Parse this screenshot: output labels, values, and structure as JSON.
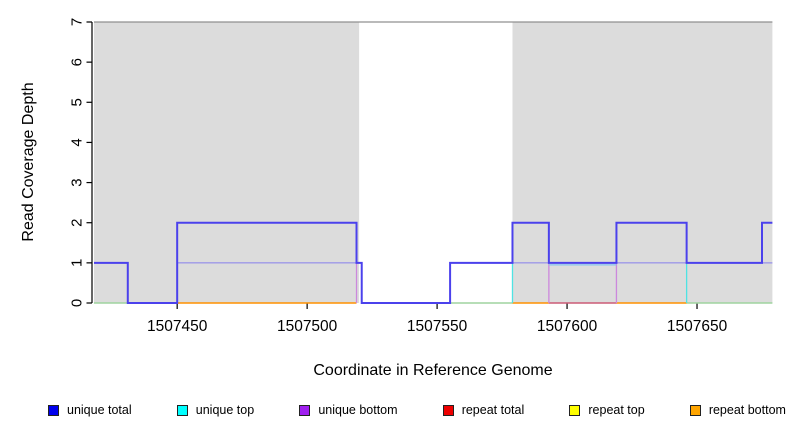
{
  "chart_data": {
    "type": "line",
    "subtype": "step-coverage",
    "title": "",
    "xlabel": "Coordinate in Reference Genome",
    "ylabel": "Read Coverage Depth",
    "xlim": [
      1507418,
      1507679
    ],
    "ylim": [
      0,
      7
    ],
    "xticks": [
      "1507450",
      "1507500",
      "1507550",
      "1507600",
      "1507650"
    ],
    "xtick_values": [
      1507450,
      1507500,
      1507550,
      1507600,
      1507650
    ],
    "yticks": [
      "0",
      "1",
      "2",
      "3",
      "4",
      "5",
      "6",
      "7"
    ],
    "ytick_values": [
      0,
      1,
      2,
      3,
      4,
      5,
      6,
      7
    ],
    "grid": false,
    "legend_position": "bottom",
    "background_color": "#ffffff",
    "shaded_regions": [
      {
        "start": 1507418,
        "end": 1507520,
        "color": "#DCDCDC"
      },
      {
        "start": 1507579,
        "end": 1507679,
        "color": "#DCDCDC"
      }
    ],
    "top_border": {
      "depth": 7,
      "color": "#909090"
    },
    "series": [
      {
        "name": "unique total",
        "color": "#0000EE",
        "apparent_line_color": "#4B41EC",
        "segments": [
          {
            "start": 1507418,
            "end": 1507431,
            "depth": 1
          },
          {
            "start": 1507431,
            "end": 1507450,
            "depth": 0
          },
          {
            "start": 1507450,
            "end": 1507519,
            "depth": 2
          },
          {
            "start": 1507519,
            "end": 1507521,
            "depth": 1
          },
          {
            "start": 1507521,
            "end": 1507555,
            "depth": 0
          },
          {
            "start": 1507555,
            "end": 1507579,
            "depth": 1
          },
          {
            "start": 1507579,
            "end": 1507593,
            "depth": 2
          },
          {
            "start": 1507593,
            "end": 1507619,
            "depth": 1
          },
          {
            "start": 1507619,
            "end": 1507646,
            "depth": 2
          },
          {
            "start": 1507646,
            "end": 1507675,
            "depth": 1
          },
          {
            "start": 1507675,
            "end": 1507679,
            "depth": 2
          }
        ]
      },
      {
        "name": "unique top",
        "color": "#00FFFF",
        "segments": [
          {
            "start": 1507418,
            "end": 1507450,
            "depth": 0
          },
          {
            "start": 1507450,
            "end": 1507519,
            "depth": 1
          },
          {
            "start": 1507519,
            "end": 1507579,
            "depth": 0
          },
          {
            "start": 1507579,
            "end": 1507646,
            "depth": 1
          },
          {
            "start": 1507646,
            "end": 1507679,
            "depth": 0
          }
        ]
      },
      {
        "name": "unique bottom",
        "color": "#A020F0",
        "segments": [
          {
            "start": 1507418,
            "end": 1507431,
            "depth": 1
          },
          {
            "start": 1507431,
            "end": 1507450,
            "depth": 0
          },
          {
            "start": 1507450,
            "end": 1507519,
            "depth": 1
          },
          {
            "start": 1507519,
            "end": 1507555,
            "depth": 0
          },
          {
            "start": 1507555,
            "end": 1507593,
            "depth": 1
          },
          {
            "start": 1507593,
            "end": 1507619,
            "depth": 0
          },
          {
            "start": 1507619,
            "end": 1507679,
            "depth": 1
          }
        ]
      },
      {
        "name": "repeat total",
        "color": "#EE0000",
        "segments": [
          {
            "start": 1507418,
            "end": 1507679,
            "depth": 0
          }
        ]
      },
      {
        "name": "repeat top",
        "color": "#FFFF00",
        "segments": [
          {
            "start": 1507418,
            "end": 1507679,
            "depth": 0
          }
        ]
      },
      {
        "name": "repeat bottom",
        "color": "#FFA500",
        "segments": [
          {
            "start": 1507418,
            "end": 1507679,
            "depth": 0
          }
        ]
      }
    ],
    "render_strokes": [
      {
        "name": "overlap-zero-green",
        "color": "#9FD49F",
        "width": 1.5,
        "lines": [
          [
            [
              1507418,
              0
            ],
            [
              1507431,
              0
            ]
          ],
          [
            [
              1507555,
              0
            ],
            [
              1507579,
              0
            ]
          ],
          [
            [
              1507646,
              0
            ],
            [
              1507679,
              0
            ]
          ]
        ]
      },
      {
        "name": "overlap-zero-orange",
        "color": "#FF9100",
        "width": 1.6,
        "lines": [
          [
            [
              1507450,
              0
            ],
            [
              1507519,
              0
            ]
          ],
          [
            [
              1507579,
              0
            ],
            [
              1507593,
              0
            ]
          ],
          [
            [
              1507619,
              0
            ],
            [
              1507646,
              0
            ]
          ]
        ]
      },
      {
        "name": "overlap-zero-crimson",
        "color": "#CC5B77",
        "width": 1.5,
        "lines": [
          [
            [
              1507593,
              0
            ],
            [
              1507619,
              0
            ]
          ]
        ]
      },
      {
        "name": "unique-top-vertical-cyan",
        "color": "#4FE3E3",
        "width": 1.3,
        "lines": [
          [
            [
              1507450,
              0
            ],
            [
              1507450,
              1
            ]
          ],
          [
            [
              1507579,
              0
            ],
            [
              1507579,
              1
            ]
          ],
          [
            [
              1507646,
              0
            ],
            [
              1507646,
              1
            ]
          ]
        ]
      },
      {
        "name": "unique-bottom-vertical-orchid",
        "color": "#CC88DD",
        "width": 1.3,
        "lines": [
          [
            [
              1507519,
              0
            ],
            [
              1507519,
              1
            ]
          ],
          [
            [
              1507593,
              0
            ],
            [
              1507593,
              1
            ]
          ],
          [
            [
              1507619,
              0
            ],
            [
              1507619,
              1
            ]
          ]
        ]
      },
      {
        "name": "overlap-one-periwinkle",
        "color": "#9E99E8",
        "width": 1.4,
        "lines": [
          [
            [
              1507450,
              1
            ],
            [
              1507519,
              1
            ]
          ],
          [
            [
              1507579,
              1
            ],
            [
              1507593,
              1
            ]
          ],
          [
            [
              1507619,
              1
            ],
            [
              1507646,
              1
            ]
          ],
          [
            [
              1507675,
              1
            ],
            [
              1507679,
              1
            ]
          ]
        ]
      },
      {
        "name": "unique-top-under-blue",
        "color": "#86C3EE",
        "width": 1.2,
        "dy": 2,
        "lines": [
          [
            [
              1507593,
              1
            ],
            [
              1507619,
              1
            ]
          ]
        ]
      }
    ]
  },
  "labels": {
    "xlabel": "Coordinate in Reference Genome",
    "ylabel": "Read Coverage Depth"
  },
  "legend": {
    "items": [
      {
        "label": "unique total",
        "color": "#0000EE"
      },
      {
        "label": "unique top",
        "color": "#00FFFF"
      },
      {
        "label": "unique bottom",
        "color": "#A020F0"
      },
      {
        "label": "repeat total",
        "color": "#EE0000"
      },
      {
        "label": "repeat top",
        "color": "#FFFF00"
      },
      {
        "label": "repeat bottom",
        "color": "#FFA500"
      }
    ]
  }
}
